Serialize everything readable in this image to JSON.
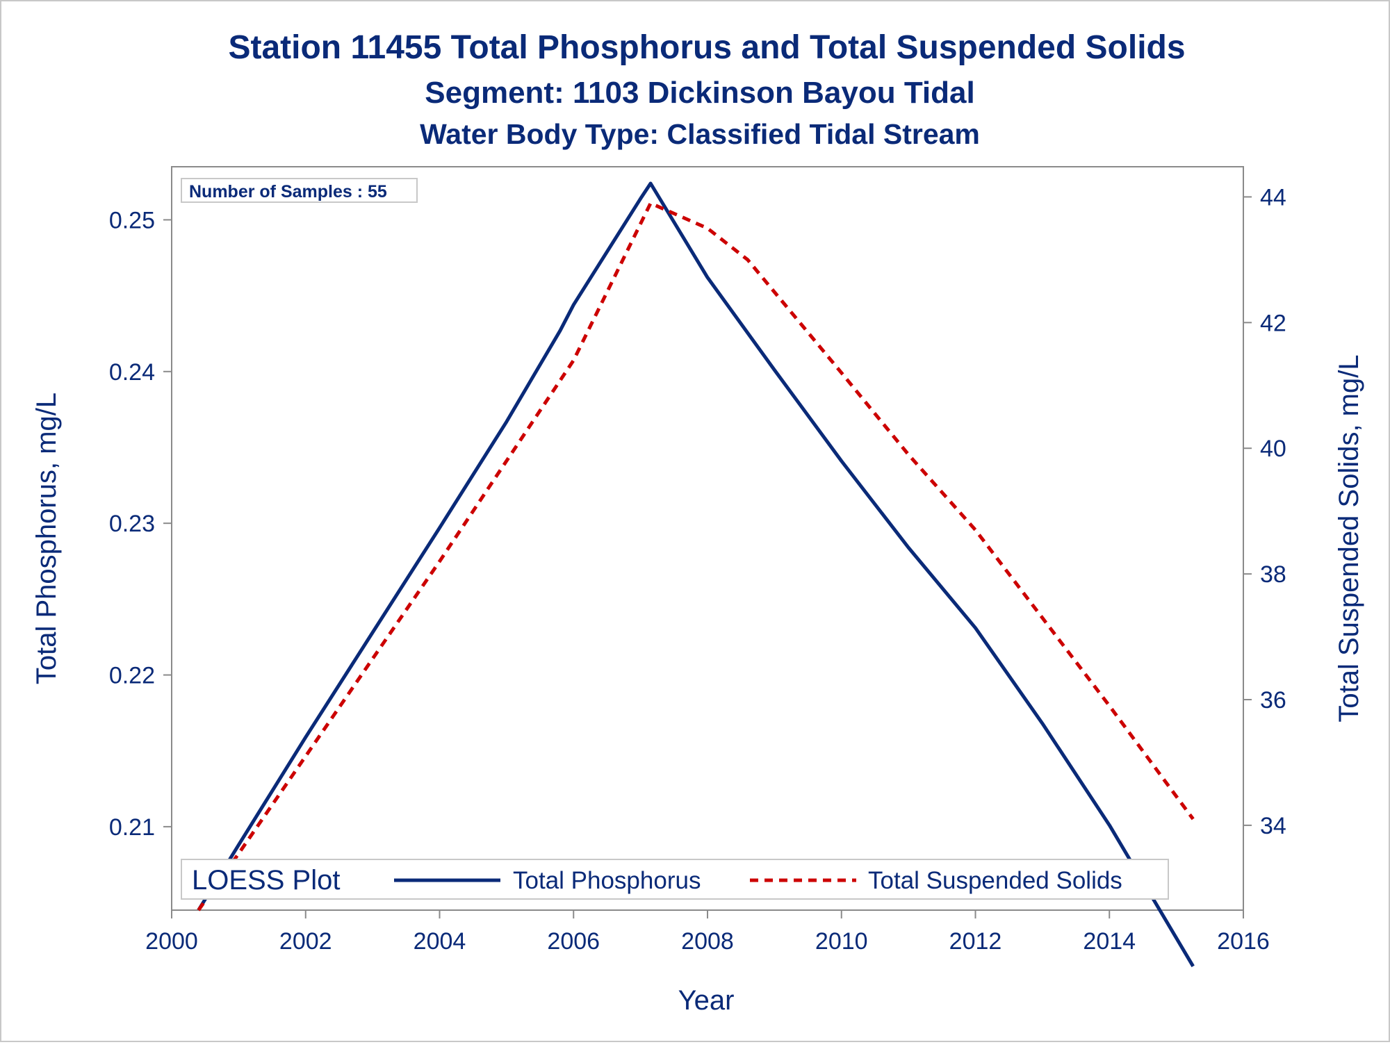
{
  "chart_data": {
    "type": "line",
    "title": "Station 11455  Total Phosphorus and Total Suspended Solids",
    "subtitle": "Segment: 1103  Dickinson Bayou Tidal",
    "subtitle2": "Water Body Type: Classified Tidal Stream",
    "xlabel": "Year",
    "ylabel_left": "Total Phosphorus, mg/L",
    "ylabel_right": "Total Suspended Solids, mg/L",
    "xlim": [
      2000,
      2016
    ],
    "ylim_left": [
      0.2045,
      0.2535
    ],
    "ylim_right": [
      32.65,
      44.48
    ],
    "x_ticks": [
      "2000",
      "2002",
      "2004",
      "2006",
      "2008",
      "2010",
      "2012",
      "2014",
      "2016"
    ],
    "y_left_ticks": [
      "0.21",
      "0.22",
      "0.23",
      "0.24",
      "0.25"
    ],
    "y_right_ticks": [
      "34",
      "36",
      "38",
      "40",
      "42",
      "44"
    ],
    "annotation": "Number of Samples : 55",
    "legend": {
      "title": "LOESS Plot",
      "placement": "bottom",
      "entries": [
        "Total Phosphorus",
        "Total Suspended Solids"
      ]
    },
    "grid": false,
    "series": [
      {
        "name": "Total Phosphorus",
        "axis": "left",
        "color": "#0a2a78",
        "style": "solid",
        "x": [
          2000.4,
          2001.0,
          2002.0,
          2003.0,
          2004.0,
          2005.0,
          2005.8,
          2006.0,
          2007.0,
          2007.15,
          2008.0,
          2009.0,
          2010.0,
          2011.0,
          2012.0,
          2013.0,
          2014.0,
          2015.25
        ],
        "y": [
          0.2045,
          0.2088,
          0.2159,
          0.2228,
          0.2297,
          0.2367,
          0.2427,
          0.2444,
          0.2514,
          0.2524,
          0.2462,
          0.2401,
          0.2341,
          0.2284,
          0.2231,
          0.2168,
          0.2101,
          0.2008
        ]
      },
      {
        "name": "Total Suspended Solids",
        "axis": "right",
        "color": "#cc0000",
        "style": "dashed",
        "x": [
          2000.4,
          2001.0,
          2002.0,
          2003.0,
          2004.0,
          2005.0,
          2006.0,
          2007.15,
          2008.0,
          2008.6,
          2010.0,
          2011.0,
          2012.0,
          2013.0,
          2014.0,
          2015.25
        ],
        "y": [
          32.65,
          33.55,
          35.1,
          36.65,
          38.2,
          39.8,
          41.4,
          43.9,
          43.5,
          43.0,
          41.2,
          39.9,
          38.7,
          37.3,
          35.9,
          34.1
        ]
      }
    ]
  }
}
